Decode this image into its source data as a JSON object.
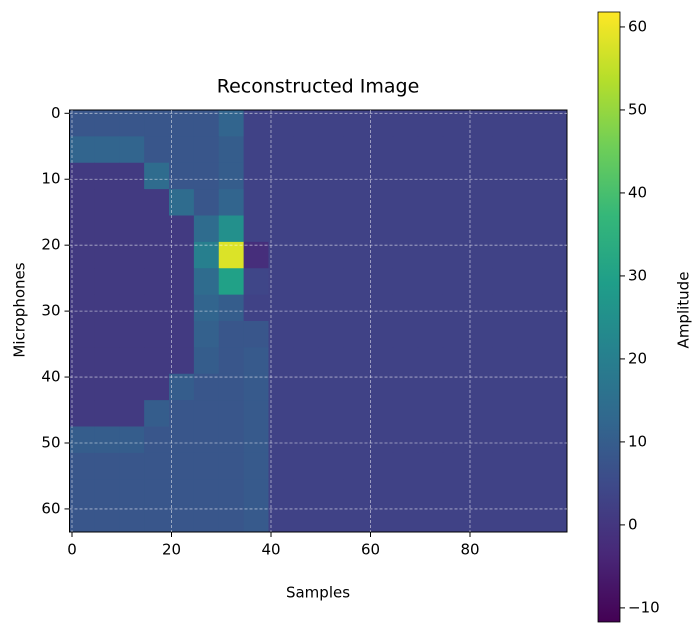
{
  "chart_data": {
    "type": "heatmap",
    "title": "Reconstructed Image",
    "xlabel": "Samples",
    "ylabel": "Microphones",
    "colorbar_label": "Amplitude",
    "colormap": "viridis",
    "grid": true,
    "xlim": [
      -0.5,
      99.5
    ],
    "xticks": [
      0,
      20,
      40,
      60,
      80
    ],
    "ylim": [
      63.5,
      -0.5
    ],
    "yticks": [
      0,
      10,
      20,
      30,
      40,
      50,
      60
    ],
    "zlim": [
      -11.7,
      61.8
    ],
    "zticks": [
      {
        "value": -10,
        "label": "−10"
      },
      0,
      10,
      20,
      30,
      40,
      50,
      60
    ],
    "z": [
      [
        8,
        8,
        8,
        8,
        8,
        8,
        12,
        3,
        3,
        3,
        3,
        3,
        3,
        3,
        3,
        3,
        3,
        3,
        3,
        3
      ],
      [
        12,
        12,
        12,
        8,
        8,
        8,
        10,
        3,
        3,
        3,
        3,
        3,
        3,
        3,
        3,
        3,
        3,
        3,
        3,
        3
      ],
      [
        1,
        1,
        1,
        14,
        8,
        8,
        10,
        3,
        3,
        3,
        3,
        3,
        3,
        3,
        3,
        3,
        3,
        3,
        3,
        3
      ],
      [
        1,
        1,
        1,
        1,
        14,
        8,
        12,
        3,
        3,
        3,
        3,
        3,
        3,
        3,
        3,
        3,
        3,
        3,
        3,
        3
      ],
      [
        1,
        1,
        1,
        1,
        1,
        14,
        25,
        3,
        3,
        3,
        3,
        3,
        3,
        3,
        3,
        3,
        3,
        3,
        3,
        3
      ],
      [
        1,
        1,
        1,
        1,
        1,
        20,
        58,
        -2,
        3,
        3,
        3,
        3,
        3,
        3,
        3,
        3,
        3,
        3,
        3,
        3
      ],
      [
        1,
        1,
        1,
        1,
        1,
        14,
        30,
        4,
        3,
        3,
        3,
        3,
        3,
        3,
        3,
        3,
        3,
        3,
        3,
        3
      ],
      [
        1,
        1,
        1,
        1,
        1,
        12,
        10,
        3,
        3,
        3,
        3,
        3,
        3,
        3,
        3,
        3,
        3,
        3,
        3,
        3
      ],
      [
        1,
        1,
        1,
        1,
        1,
        11,
        8,
        8,
        3,
        3,
        3,
        3,
        3,
        3,
        3,
        3,
        3,
        3,
        3,
        3
      ],
      [
        1,
        1,
        1,
        1,
        1,
        10,
        8,
        9,
        3,
        3,
        3,
        3,
        3,
        3,
        3,
        3,
        3,
        3,
        3,
        3
      ],
      [
        1,
        1,
        1,
        1,
        10,
        8,
        8,
        9,
        3,
        3,
        3,
        3,
        3,
        3,
        3,
        3,
        3,
        3,
        3,
        3
      ],
      [
        1,
        1,
        1,
        10,
        8,
        8,
        8,
        9,
        3,
        3,
        3,
        3,
        3,
        3,
        3,
        3,
        3,
        3,
        3,
        3
      ],
      [
        10,
        10,
        10,
        8,
        8,
        8,
        8,
        9,
        3,
        3,
        3,
        3,
        3,
        3,
        3,
        3,
        3,
        3,
        3,
        3
      ],
      [
        8,
        8,
        8,
        8,
        8,
        8,
        8,
        9,
        3,
        3,
        3,
        3,
        3,
        3,
        3,
        3,
        3,
        3,
        3,
        3
      ],
      [
        8,
        8,
        8,
        8,
        8,
        8,
        8,
        9,
        3,
        3,
        3,
        3,
        3,
        3,
        3,
        3,
        3,
        3,
        3,
        3
      ],
      [
        8,
        8,
        8,
        8,
        8,
        8,
        8,
        9,
        3,
        3,
        3,
        3,
        3,
        3,
        3,
        3,
        3,
        3,
        3,
        3
      ]
    ]
  }
}
